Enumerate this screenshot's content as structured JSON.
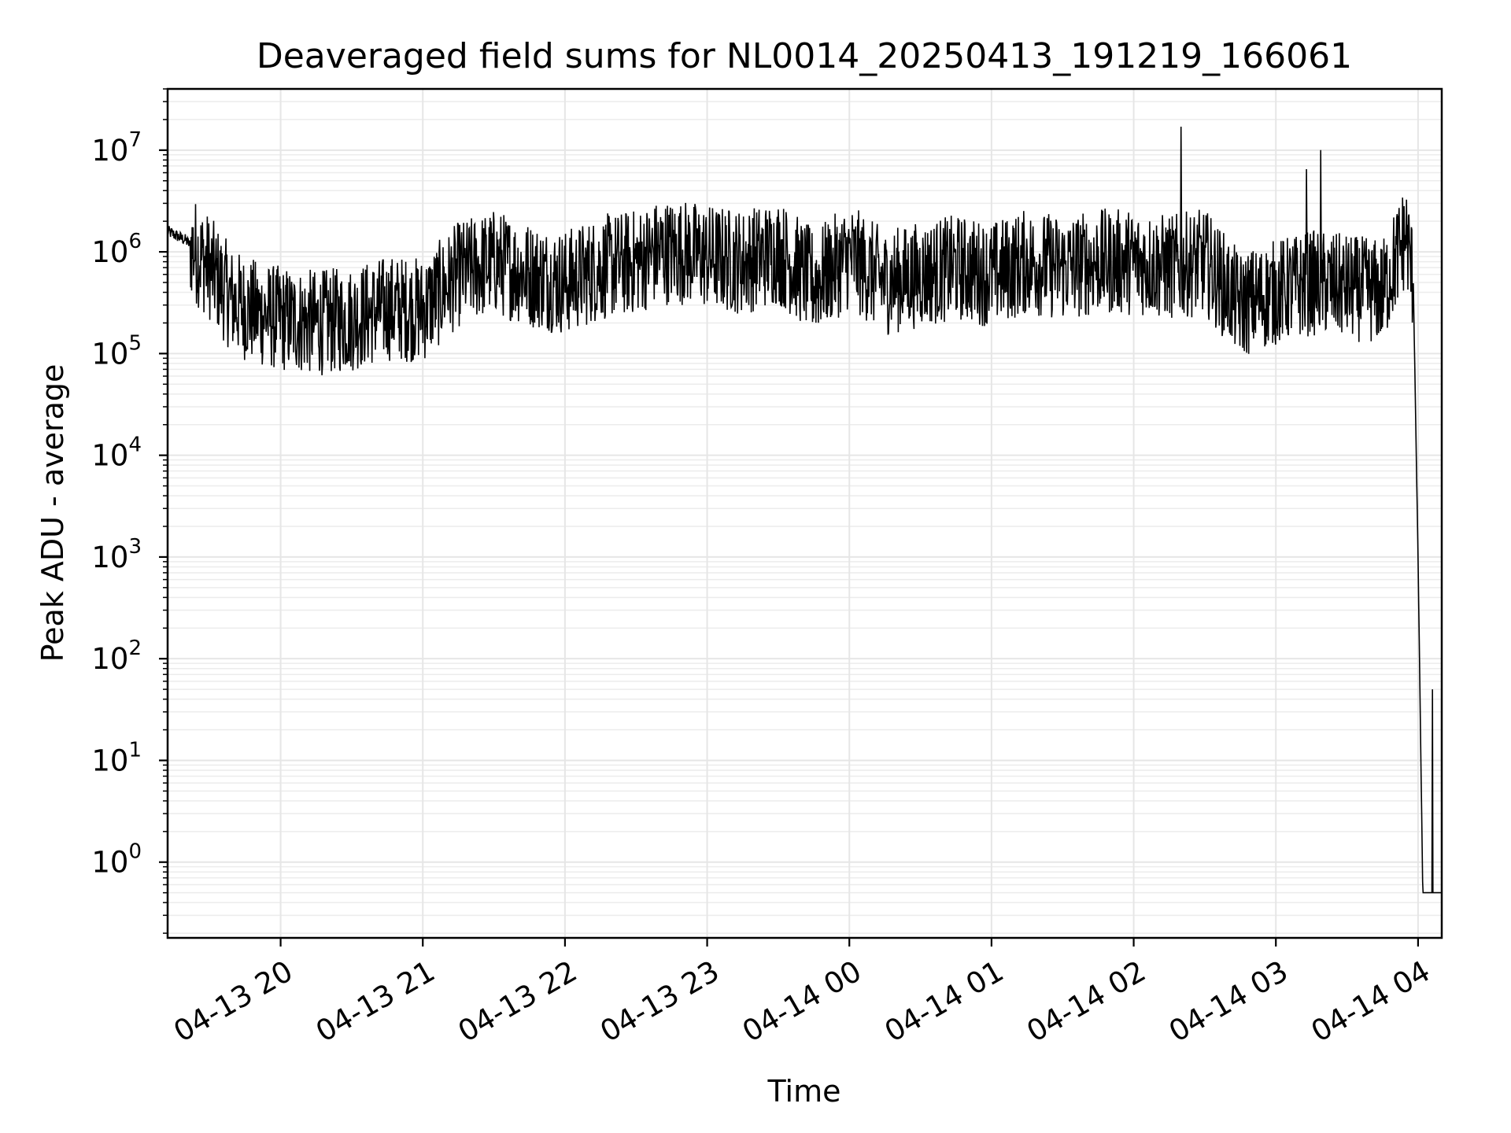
{
  "chart_data": {
    "type": "line",
    "title": "Deaveraged field sums for NL0014_20250413_191219_166061",
    "xlabel": "Time",
    "ylabel": "Peak ADU - average",
    "yscale": "log",
    "ylim": [
      0.18,
      40000000
    ],
    "x_is_time": true,
    "xlim": [
      "2025-04-13 19:12:19",
      "2025-04-14 04:10:00"
    ],
    "x_tick_labels": [
      "04-13 20",
      "04-13 21",
      "04-13 22",
      "04-13 23",
      "04-14 00",
      "04-14 01",
      "04-14 02",
      "04-14 03",
      "04-14 04"
    ],
    "x_ticks": [
      "2025-04-13 20:00",
      "2025-04-13 21:00",
      "2025-04-13 22:00",
      "2025-04-13 23:00",
      "2025-04-14 00:00",
      "2025-04-14 01:00",
      "2025-04-14 02:00",
      "2025-04-14 03:00",
      "2025-04-14 04:00"
    ],
    "y_ticks": [
      {
        "value": 1,
        "base": "10",
        "exp": "0"
      },
      {
        "value": 10,
        "base": "10",
        "exp": "1"
      },
      {
        "value": 100,
        "base": "10",
        "exp": "2"
      },
      {
        "value": 1000,
        "base": "10",
        "exp": "3"
      },
      {
        "value": 10000,
        "base": "10",
        "exp": "4"
      },
      {
        "value": 100000,
        "base": "10",
        "exp": "5"
      },
      {
        "value": 1000000,
        "base": "10",
        "exp": "6"
      },
      {
        "value": 10000000,
        "base": "10",
        "exp": "7"
      }
    ],
    "grid": true,
    "line_color": "#000000",
    "series": [
      {
        "x": [
          "2025-04-13 19:12",
          "2025-04-13 19:20",
          "2025-04-13 19:30",
          "2025-04-13 19:40",
          "2025-04-13 19:50",
          "2025-04-13 20:00",
          "2025-04-13 20:15",
          "2025-04-13 20:30",
          "2025-04-13 20:45",
          "2025-04-13 21:00",
          "2025-04-13 21:15",
          "2025-04-13 21:30",
          "2025-04-13 21:45",
          "2025-04-13 22:00",
          "2025-04-13 22:15",
          "2025-04-13 22:30",
          "2025-04-13 22:40",
          "2025-04-13 22:50",
          "2025-04-13 23:00",
          "2025-04-13 23:15",
          "2025-04-13 23:30",
          "2025-04-13 23:45",
          "2025-04-14 00:00",
          "2025-04-14 00:15",
          "2025-04-14 00:30",
          "2025-04-14 00:45",
          "2025-04-14 01:00",
          "2025-04-14 01:15",
          "2025-04-14 01:30",
          "2025-04-14 01:45",
          "2025-04-14 02:00",
          "2025-04-14 02:15",
          "2025-04-14 02:30",
          "2025-04-14 02:45",
          "2025-04-14 03:00",
          "2025-04-14 03:15",
          "2025-04-14 03:30",
          "2025-04-14 03:45",
          "2025-04-14 03:55",
          "2025-04-14 03:58",
          "2025-04-14 04:00",
          "2025-04-14 04:02",
          "2025-04-14 04:05",
          "2025-04-14 04:10"
        ],
        "y": [
          1600000,
          1300000,
          700000,
          320000,
          250000,
          220000,
          200000,
          220000,
          280000,
          270000,
          600000,
          800000,
          600000,
          500000,
          700000,
          800000,
          1000000,
          1000000,
          900000,
          800000,
          1000000,
          500000,
          900000,
          500000,
          600000,
          700000,
          600000,
          800000,
          700000,
          800000,
          800000,
          700000,
          800000,
          300000,
          400000,
          500000,
          450000,
          400000,
          1500000,
          500000,
          1000,
          0.5,
          0.5,
          0.5
        ]
      }
    ],
    "spikes": [
      {
        "x": "2025-04-14 02:20",
        "y": 17000000
      },
      {
        "x": "2025-04-14 03:19",
        "y": 10000000
      },
      {
        "x": "2025-04-14 03:13",
        "y": 6500000
      },
      {
        "x": "2025-04-14 04:06",
        "y": 50
      }
    ]
  }
}
